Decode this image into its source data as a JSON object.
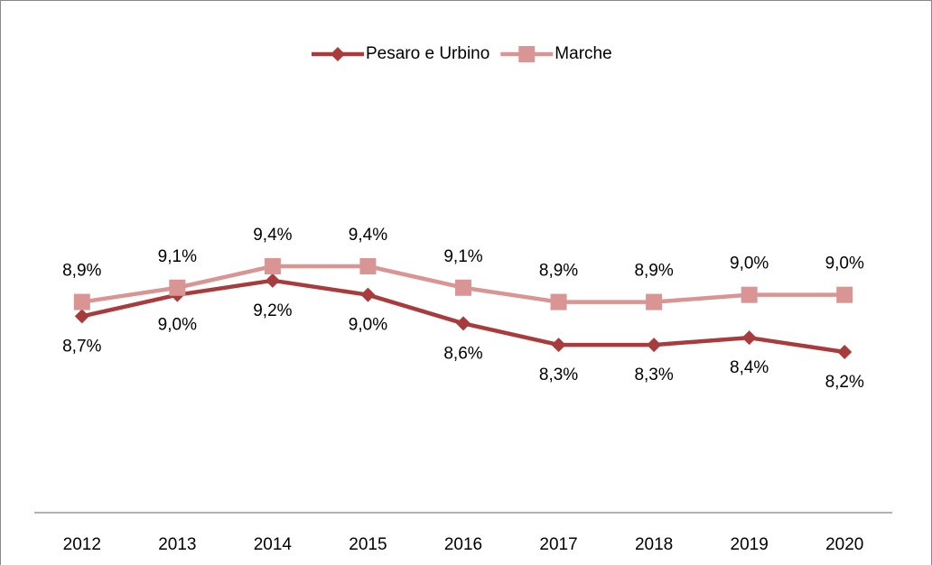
{
  "chart_data": {
    "type": "line",
    "categories": [
      "2012",
      "2013",
      "2014",
      "2015",
      "2016",
      "2017",
      "2018",
      "2019",
      "2020"
    ],
    "series": [
      {
        "name": "Pesaro e Urbino",
        "color": "#a83c3c",
        "marker": "diamond",
        "values": [
          8.7,
          9.0,
          9.2,
          9.0,
          8.6,
          8.3,
          8.3,
          8.4,
          8.2
        ],
        "value_labels": [
          "8,7%",
          "9,0%",
          "9,2%",
          "9,0%",
          "8,6%",
          "8,3%",
          "8,3%",
          "8,4%",
          "8,2%"
        ]
      },
      {
        "name": "Marche",
        "color": "#d99594",
        "marker": "square",
        "values": [
          8.9,
          9.1,
          9.4,
          9.4,
          9.1,
          8.9,
          8.9,
          9.0,
          9.0
        ],
        "value_labels": [
          "8,9%",
          "9,1%",
          "9,4%",
          "9,4%",
          "9,1%",
          "8,9%",
          "8,9%",
          "9,0%",
          "9,0%"
        ]
      }
    ],
    "legend": "top"
  }
}
